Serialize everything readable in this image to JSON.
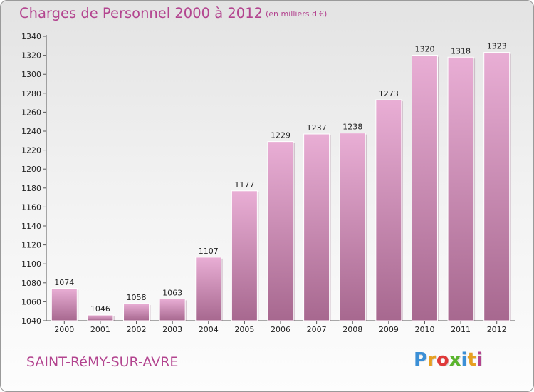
{
  "header": {
    "title": "Charges de Personnel 2000 à 2012",
    "subtitle": "(en milliers d'€)"
  },
  "footer": {
    "commune": "SAINT-RéMY-SUR-AVRE",
    "logo_letters": [
      {
        "ch": "P",
        "color": "#3b8fd6"
      },
      {
        "ch": "r",
        "color": "#e8a020"
      },
      {
        "ch": "o",
        "color": "#e03a3a"
      },
      {
        "ch": "x",
        "color": "#5ab52d"
      },
      {
        "ch": "i",
        "color": "#3b8fd6"
      },
      {
        "ch": "t",
        "color": "#e8a020"
      },
      {
        "ch": "i",
        "color": "#b3448f"
      }
    ]
  },
  "colors": {
    "accent": "#b3448f",
    "bar_top": "#e9aed5",
    "bar_bottom": "#a7688f"
  },
  "chart_data": {
    "type": "bar",
    "categories": [
      "2000",
      "2001",
      "2002",
      "2003",
      "2004",
      "2005",
      "2006",
      "2007",
      "2008",
      "2009",
      "2010",
      "2011",
      "2012"
    ],
    "values": [
      1074,
      1046,
      1058,
      1063,
      1107,
      1177,
      1229,
      1237,
      1238,
      1273,
      1320,
      1318,
      1323
    ],
    "title": "Charges de Personnel 2000 à 2012",
    "subtitle": "(en milliers d'€)",
    "xlabel": "",
    "ylabel": "",
    "ylim": [
      1040,
      1340
    ],
    "yticks": [
      1040,
      1060,
      1080,
      1100,
      1120,
      1140,
      1160,
      1180,
      1200,
      1220,
      1240,
      1260,
      1280,
      1300,
      1320,
      1340
    ],
    "grid": false,
    "data_labels": true
  }
}
